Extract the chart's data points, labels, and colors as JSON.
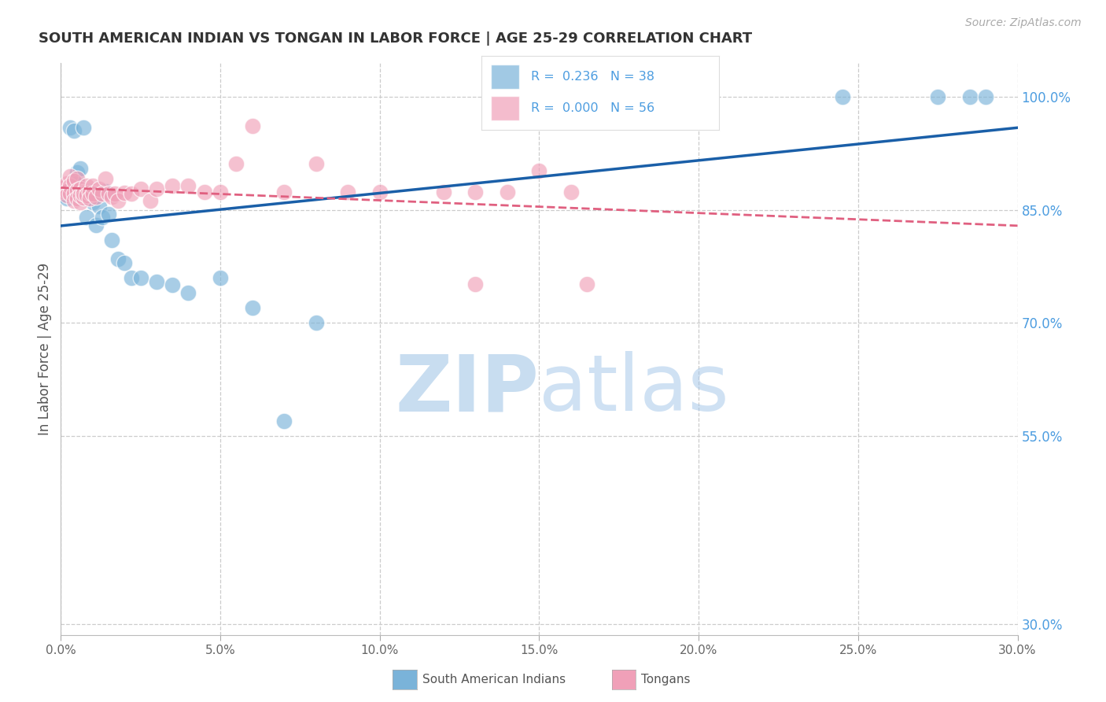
{
  "title": "SOUTH AMERICAN INDIAN VS TONGAN IN LABOR FORCE | AGE 25-29 CORRELATION CHART",
  "source": "Source: ZipAtlas.com",
  "ylabel": "In Labor Force | Age 25-29",
  "xmin": 0.0,
  "xmax": 0.3,
  "ymin": 0.285,
  "ymax": 1.045,
  "xtick_labels": [
    "0.0%",
    "5.0%",
    "10.0%",
    "15.0%",
    "20.0%",
    "25.0%",
    "30.0%"
  ],
  "xtick_values": [
    0.0,
    0.05,
    0.1,
    0.15,
    0.2,
    0.25,
    0.3
  ],
  "ytick_labels": [
    "100.0%",
    "85.0%",
    "70.0%",
    "55.0%"
  ],
  "ytick_values": [
    1.0,
    0.85,
    0.7,
    0.55
  ],
  "bottom_ytick_label": "30.0%",
  "grid_color": "#cccccc",
  "legend_label_blue": "South American Indians",
  "legend_label_pink": "Tongans",
  "blue_color": "#7ab3d9",
  "pink_color": "#f0a0b8",
  "trendline_blue_color": "#1a5fa8",
  "trendline_pink_color": "#e06080",
  "right_axis_color": "#4d9de0",
  "blue_x": [
    0.001,
    0.002,
    0.002,
    0.003,
    0.003,
    0.004,
    0.004,
    0.005,
    0.005,
    0.006,
    0.006,
    0.007,
    0.007,
    0.008,
    0.008,
    0.009,
    0.01,
    0.011,
    0.012,
    0.013,
    0.014,
    0.015,
    0.016,
    0.018,
    0.02,
    0.022,
    0.025,
    0.03,
    0.035,
    0.04,
    0.05,
    0.06,
    0.07,
    0.08,
    0.245,
    0.275,
    0.285,
    0.29
  ],
  "blue_y": [
    0.87,
    0.875,
    0.865,
    0.96,
    0.88,
    0.955,
    0.87,
    0.9,
    0.885,
    0.905,
    0.875,
    0.87,
    0.96,
    0.865,
    0.84,
    0.875,
    0.86,
    0.83,
    0.855,
    0.84,
    0.875,
    0.845,
    0.81,
    0.785,
    0.78,
    0.76,
    0.76,
    0.755,
    0.75,
    0.74,
    0.76,
    0.72,
    0.57,
    0.7,
    1.0,
    1.0,
    1.0,
    1.0
  ],
  "pink_x": [
    0.001,
    0.001,
    0.002,
    0.002,
    0.002,
    0.003,
    0.003,
    0.003,
    0.004,
    0.004,
    0.004,
    0.005,
    0.005,
    0.005,
    0.006,
    0.006,
    0.006,
    0.007,
    0.007,
    0.007,
    0.008,
    0.008,
    0.009,
    0.009,
    0.01,
    0.01,
    0.011,
    0.012,
    0.013,
    0.014,
    0.015,
    0.016,
    0.017,
    0.018,
    0.02,
    0.022,
    0.025,
    0.028,
    0.03,
    0.035,
    0.04,
    0.045,
    0.05,
    0.055,
    0.06,
    0.07,
    0.08,
    0.09,
    0.1,
    0.12,
    0.13,
    0.14,
    0.15,
    0.16,
    0.13,
    0.165
  ],
  "pink_y": [
    0.88,
    0.875,
    0.885,
    0.875,
    0.87,
    0.895,
    0.882,
    0.872,
    0.888,
    0.872,
    0.862,
    0.892,
    0.876,
    0.866,
    0.878,
    0.86,
    0.87,
    0.874,
    0.867,
    0.872,
    0.882,
    0.87,
    0.873,
    0.865,
    0.882,
    0.872,
    0.868,
    0.878,
    0.872,
    0.892,
    0.872,
    0.868,
    0.872,
    0.862,
    0.873,
    0.872,
    0.878,
    0.862,
    0.878,
    0.882,
    0.882,
    0.874,
    0.874,
    0.912,
    0.962,
    0.874,
    0.912,
    0.874,
    0.874,
    0.874,
    0.874,
    0.874,
    0.902,
    0.874,
    0.752,
    0.752
  ],
  "watermark_zip": "ZIP",
  "watermark_atlas": "atlas",
  "background_color": "#ffffff"
}
